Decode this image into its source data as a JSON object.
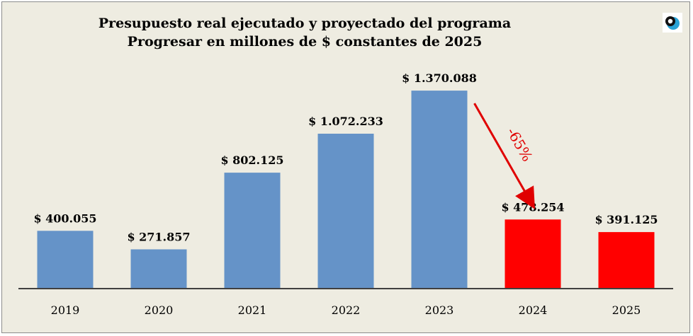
{
  "chart_data": {
    "type": "bar",
    "title": "Presupuesto real ejecutado y proyectado del programa Progresar en millones de $ constantes de 2025",
    "categories": [
      "2019",
      "2020",
      "2021",
      "2022",
      "2023",
      "2024",
      "2025"
    ],
    "values": [
      400055,
      271857,
      802125,
      1072233,
      1370088,
      478254,
      391125
    ],
    "value_labels": [
      "$ 400.055",
      "$ 271.857",
      "$ 802.125",
      "$ 1.072.233",
      "$ 1.370.088",
      "$ 478.254",
      "$ 391.125"
    ],
    "colors": [
      "#6593c8",
      "#6593c8",
      "#6593c8",
      "#6593c8",
      "#6593c8",
      "#ff0000",
      "#ff0000"
    ],
    "xlabel": "",
    "ylabel": "",
    "ylim": [
      0,
      1400000
    ],
    "grid": false,
    "annotation": {
      "text": "-65%",
      "from": "2023",
      "to": "2024",
      "color": "#e00000"
    }
  },
  "logo": {
    "icon": "eye-logo-icon"
  }
}
